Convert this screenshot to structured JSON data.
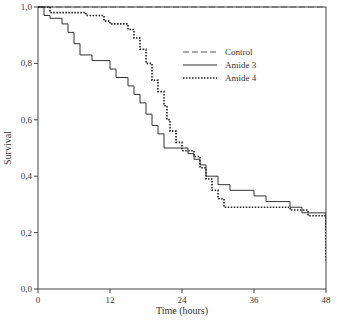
{
  "chart_data": {
    "type": "step",
    "x_label": "Time (hours)",
    "y_label": "Survival",
    "xlim": [
      0,
      48
    ],
    "xticks": [
      0,
      12,
      24,
      36,
      48
    ],
    "ylim": [
      0,
      1
    ],
    "yticks": [
      {
        "value": 0,
        "label": "0,0"
      },
      {
        "value": 0.2,
        "label": "0,2"
      },
      {
        "value": 0.4,
        "label": "0,4"
      },
      {
        "value": 0.6,
        "label": "0,6"
      },
      {
        "value": 0.8,
        "label": "0,8"
      },
      {
        "value": 1,
        "label": "1,0"
      }
    ],
    "grid": false,
    "legend": "upper right",
    "series": [
      {
        "name": "Control",
        "color": "#555555",
        "line_style": "dashed",
        "x": [
          0,
          48
        ],
        "values": [
          1,
          1
        ]
      },
      {
        "name": "Amide 3",
        "color": "#333333",
        "line_style": "solid",
        "x": [
          0,
          1,
          2,
          4,
          5,
          6,
          7,
          9,
          12,
          13,
          15,
          16,
          17,
          18,
          19,
          20,
          21,
          25,
          26,
          27,
          28,
          30,
          32,
          36,
          38,
          42,
          44,
          48
        ],
        "values": [
          1,
          0.97,
          0.96,
          0.94,
          0.91,
          0.87,
          0.83,
          0.81,
          0.78,
          0.75,
          0.72,
          0.69,
          0.66,
          0.62,
          0.58,
          0.55,
          0.5,
          0.48,
          0.46,
          0.44,
          0.4,
          0.37,
          0.35,
          0.33,
          0.31,
          0.29,
          0.27,
          0.21
        ]
      },
      {
        "name": "Amide 4",
        "color": "#222222",
        "line_style": "dotted",
        "x": [
          0,
          2,
          8,
          11,
          12,
          15,
          16,
          17,
          18,
          19,
          20,
          21,
          21.5,
          22,
          23,
          24,
          26,
          27,
          28,
          29,
          30,
          31,
          42,
          45,
          48
        ],
        "values": [
          1,
          0.98,
          0.97,
          0.95,
          0.94,
          0.92,
          0.89,
          0.85,
          0.8,
          0.74,
          0.7,
          0.65,
          0.6,
          0.56,
          0.52,
          0.49,
          0.47,
          0.43,
          0.39,
          0.35,
          0.32,
          0.29,
          0.28,
          0.26,
          0.1
        ]
      }
    ]
  }
}
